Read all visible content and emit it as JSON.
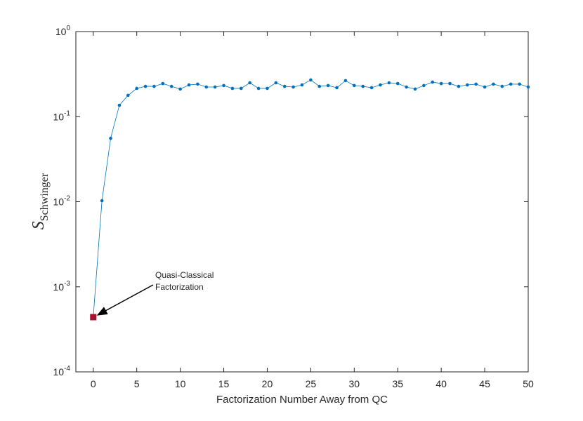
{
  "chart_data": {
    "type": "line",
    "x_label": "Factorization Number Away from QC",
    "y_label": "S_Schwinger",
    "x": [
      0,
      1,
      2,
      3,
      4,
      5,
      6,
      7,
      8,
      9,
      10,
      11,
      12,
      13,
      14,
      15,
      16,
      17,
      18,
      19,
      20,
      21,
      22,
      23,
      24,
      25,
      26,
      27,
      28,
      29,
      30,
      31,
      32,
      33,
      34,
      35,
      36,
      37,
      38,
      39,
      40,
      41,
      42,
      43,
      44,
      45,
      46,
      47,
      48,
      49,
      50
    ],
    "series": [
      {
        "color": "#0072bd",
        "highlight_color": "#a2142f",
        "values": [
          0.00044,
          0.0103,
          0.0557,
          0.136,
          0.178,
          0.215,
          0.227,
          0.227,
          0.245,
          0.227,
          0.211,
          0.236,
          0.241,
          0.223,
          0.223,
          0.232,
          0.215,
          0.215,
          0.25,
          0.215,
          0.215,
          0.25,
          0.227,
          0.223,
          0.236,
          0.27,
          0.227,
          0.232,
          0.219,
          0.265,
          0.232,
          0.227,
          0.219,
          0.236,
          0.25,
          0.245,
          0.223,
          0.211,
          0.232,
          0.255,
          0.245,
          0.245,
          0.227,
          0.236,
          0.241,
          0.223,
          0.241,
          0.227,
          0.241,
          0.241,
          0.223
        ]
      }
    ],
    "xlim": [
      -2,
      50
    ],
    "xticks": [
      0,
      5,
      10,
      15,
      20,
      25,
      30,
      35,
      40,
      45,
      50
    ],
    "ylim": [
      0.0001,
      1
    ],
    "y_scale": "log",
    "yticks": [
      {
        "value": 0.0001,
        "label": "10^-4"
      },
      {
        "value": 0.001,
        "label": "10^-3"
      },
      {
        "value": 0.01,
        "label": "10^-2"
      },
      {
        "value": 0.1,
        "label": "10^-1"
      },
      {
        "value": 1,
        "label": "10^0"
      }
    ],
    "annotation": {
      "lines": [
        "Quasi-Classical",
        "Factorization"
      ]
    }
  }
}
